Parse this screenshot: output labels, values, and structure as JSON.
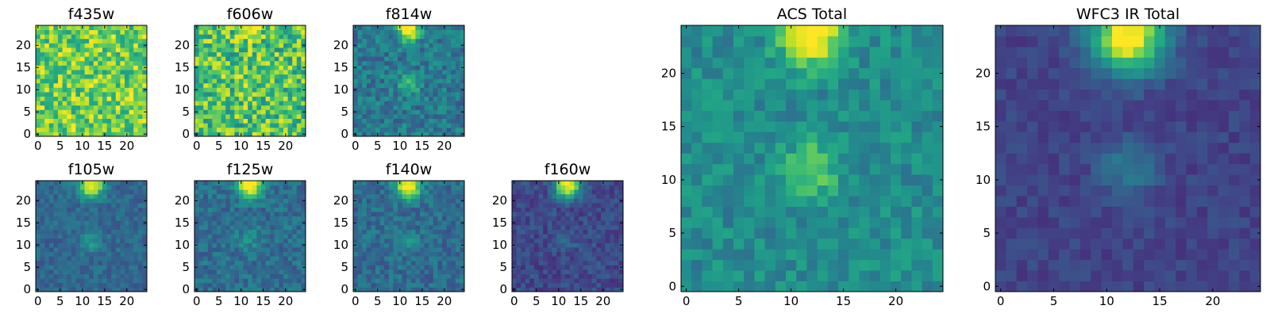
{
  "chart_data": [
    {
      "type": "heatmap",
      "title": "f435w",
      "xticks": [
        0,
        5,
        10,
        15,
        20
      ],
      "yticks": [
        0,
        5,
        10,
        15,
        20
      ],
      "xlim": [
        0,
        25
      ],
      "ylim": [
        0,
        25
      ],
      "colormap": "viridis",
      "grid": false
    },
    {
      "type": "heatmap",
      "title": "f606w",
      "xticks": [
        0,
        5,
        10,
        15,
        20
      ],
      "yticks": [
        0,
        5,
        10,
        15,
        20
      ],
      "xlim": [
        0,
        25
      ],
      "ylim": [
        0,
        25
      ],
      "colormap": "viridis",
      "grid": false
    },
    {
      "type": "heatmap",
      "title": "f814w",
      "xticks": [
        0,
        5,
        10,
        15,
        20
      ],
      "yticks": [
        0,
        5,
        10,
        15,
        20
      ],
      "xlim": [
        0,
        25
      ],
      "ylim": [
        0,
        25
      ],
      "colormap": "viridis",
      "grid": false
    },
    {
      "type": "heatmap",
      "title": "f105w",
      "xticks": [
        0,
        5,
        10,
        15,
        20
      ],
      "yticks": [
        0,
        5,
        10,
        15,
        20
      ],
      "xlim": [
        0,
        25
      ],
      "ylim": [
        0,
        25
      ],
      "colormap": "viridis",
      "grid": false
    },
    {
      "type": "heatmap",
      "title": "f125w",
      "xticks": [
        0,
        5,
        10,
        15,
        20
      ],
      "yticks": [
        0,
        5,
        10,
        15,
        20
      ],
      "xlim": [
        0,
        25
      ],
      "ylim": [
        0,
        25
      ],
      "colormap": "viridis",
      "grid": false
    },
    {
      "type": "heatmap",
      "title": "f140w",
      "xticks": [
        0,
        5,
        10,
        15,
        20
      ],
      "yticks": [
        0,
        5,
        10,
        15,
        20
      ],
      "xlim": [
        0,
        25
      ],
      "ylim": [
        0,
        25
      ],
      "colormap": "viridis",
      "grid": false
    },
    {
      "type": "heatmap",
      "title": "f160w",
      "xticks": [
        0,
        5,
        10,
        15,
        20
      ],
      "yticks": [
        0,
        5,
        10,
        15,
        20
      ],
      "xlim": [
        0,
        25
      ],
      "ylim": [
        0,
        25
      ],
      "colormap": "viridis",
      "grid": false
    },
    {
      "type": "heatmap",
      "title": "ACS Total",
      "xticks": [
        0,
        5,
        10,
        15,
        20
      ],
      "yticks": [
        0,
        5,
        10,
        15,
        20
      ],
      "xlim": [
        0,
        25
      ],
      "ylim": [
        0,
        25
      ],
      "colormap": "viridis",
      "grid": false
    },
    {
      "type": "heatmap",
      "title": "WFC3 IR Total",
      "xticks": [
        0,
        5,
        10,
        15,
        20
      ],
      "yticks": [
        0,
        5,
        10,
        15,
        20
      ],
      "xlim": [
        0,
        25
      ],
      "ylim": [
        0,
        25
      ],
      "colormap": "viridis",
      "grid": false
    }
  ]
}
